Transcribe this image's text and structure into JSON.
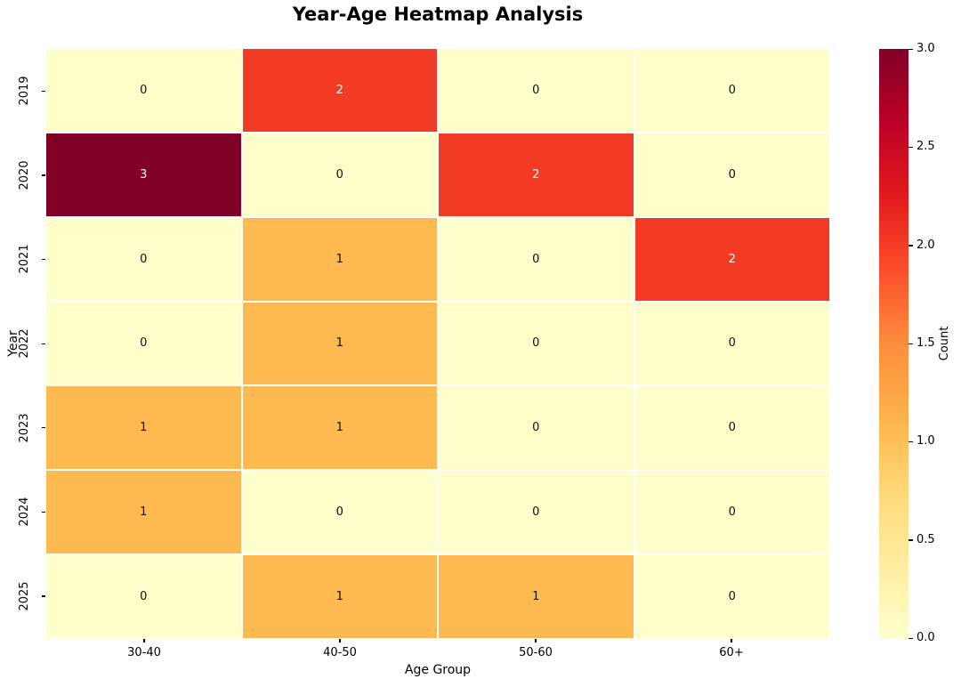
{
  "chart_data": {
    "type": "heatmap",
    "title": "Year-Age Heatmap Analysis",
    "xlabel": "Age Group",
    "ylabel": "Year",
    "colorbar_label": "Count",
    "x_categories": [
      "30-40",
      "40-50",
      "50-60",
      "60+"
    ],
    "y_categories": [
      "2019",
      "2020",
      "2021",
      "2022",
      "2023",
      "2024",
      "2025"
    ],
    "values": [
      [
        0,
        2,
        0,
        0
      ],
      [
        3,
        0,
        2,
        0
      ],
      [
        0,
        1,
        0,
        2
      ],
      [
        0,
        1,
        0,
        0
      ],
      [
        1,
        1,
        0,
        0
      ],
      [
        1,
        0,
        0,
        0
      ],
      [
        0,
        1,
        1,
        0
      ]
    ],
    "vmin": 0.0,
    "vmax": 3.0,
    "colorbar_tick_labels_top_to_bottom": [
      "3.0",
      "2.5",
      "2.0",
      "1.5",
      "1.0",
      "0.5",
      "0.0"
    ],
    "colormap_name": "YlOrRd",
    "colormap_stops_bottom_to_top": [
      "#ffffcc",
      "#ffeda0",
      "#fed976",
      "#feb24c",
      "#fd8d3c",
      "#fc4e2a",
      "#e31a1c",
      "#bd0026",
      "#800026"
    ],
    "cell_colors": {
      "0": "#ffffcc",
      "1": "#feb950",
      "2": "#f13b25",
      "3": "#800026"
    },
    "cell_text_colors": {
      "0": "#0f0f0f",
      "1": "#0f0f0f",
      "2": "#ffffff",
      "3": "#ffffff"
    },
    "grid_line_color": "#ffffff",
    "legend_position": "right-colorbar",
    "grid": false
  }
}
